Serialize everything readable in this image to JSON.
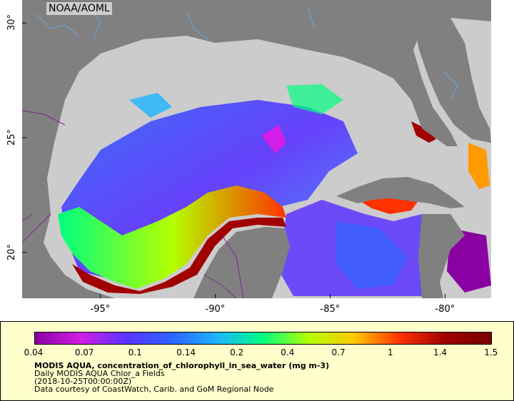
{
  "map": {
    "credit_badge": "NOAA/AOML",
    "x_ticks": [
      {
        "label": "-95°",
        "lon": -95
      },
      {
        "label": "-90°",
        "lon": -90
      },
      {
        "label": "-85°",
        "lon": -85
      },
      {
        "label": "-80°",
        "lon": -80
      }
    ],
    "y_ticks": [
      {
        "label": "30°",
        "lat": 30
      },
      {
        "label": "25°",
        "lat": 25
      },
      {
        "label": "20°",
        "lat": 20
      }
    ],
    "lon_range": [
      -98.4,
      -78.0
    ],
    "lat_range": [
      18.0,
      31.0
    ],
    "colors": {
      "land": "#808080",
      "no_data": "#cccccc",
      "border": "#7a2a8a",
      "river": "#6aa6e0"
    }
  },
  "legend": {
    "colorbar_ticks": [
      "0.04",
      "0.07",
      "0.1",
      "0.14",
      "0.2",
      "0.4",
      "0.7",
      "1",
      "1.4",
      "1.5"
    ],
    "colorbar_colors": [
      "#8a00a0",
      "#d21ee6",
      "#5a32ff",
      "#2d64ff",
      "#1eb4ff",
      "#00ff80",
      "#b4ff00",
      "#ffc800",
      "#ff3200",
      "#a00000",
      "#780000"
    ],
    "title": "MODIS AQUA, concentration_of_chlorophyll_in_sea_water (mg m-3)",
    "subtitle": "Daily MODIS AQUA Chlor_a Fields",
    "time": "(2018-10-25T00:00:00Z)",
    "credit": "Data courtesy of CoastWatch, Carib. and GoM Regional Node"
  }
}
